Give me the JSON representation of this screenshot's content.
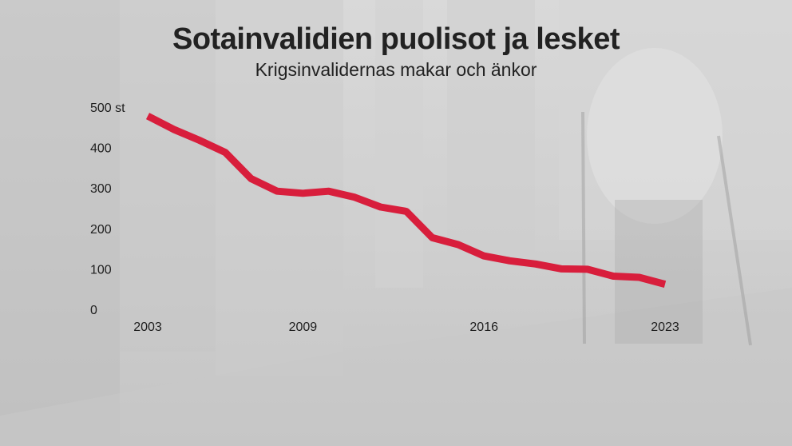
{
  "chart_data": {
    "type": "line",
    "title": "Sotainvalidien puolisot ja lesket",
    "subtitle": "Krigsinvalidernas makar och änkor",
    "x": [
      2003,
      2004,
      2005,
      2006,
      2007,
      2008,
      2009,
      2010,
      2011,
      2012,
      2013,
      2014,
      2015,
      2016,
      2017,
      2018,
      2019,
      2020,
      2021,
      2022,
      2023
    ],
    "series": [
      {
        "values": [
          478,
          445,
          418,
          388,
          323,
          292,
          287,
          292,
          277,
          253,
          242,
          177,
          160,
          132,
          120,
          112,
          100,
          99,
          82,
          79,
          62
        ],
        "color": "#d81e3c"
      }
    ],
    "xticks": [
      "2003",
      "2009",
      "2016",
      "2023"
    ],
    "yticks": [
      "500 st",
      "400",
      "300",
      "200",
      "100",
      "0"
    ],
    "ylim": [
      0,
      500
    ],
    "xlim": [
      2003,
      2023
    ],
    "grid": false,
    "legend": "none"
  }
}
